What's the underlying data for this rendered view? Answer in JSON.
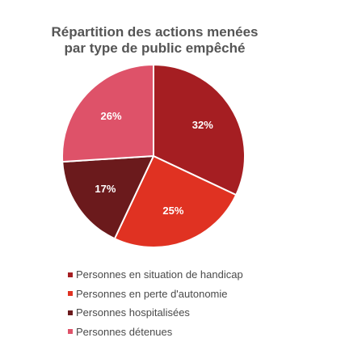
{
  "chart_data": {
    "type": "pie",
    "title": "Répartition des actions menées par type de public empêché",
    "title_lines": [
      "Répartition des actions menées",
      "par type de public empêché"
    ],
    "categories": [
      "Personnes en situation de handicap",
      "Personnes en perte d'autonomie",
      "Personnes hospitalisées",
      "Personnes détenues"
    ],
    "values": [
      32,
      25,
      17,
      26
    ],
    "data_labels": [
      "32%",
      "25%",
      "17%",
      "26%"
    ],
    "colors": [
      "#a51e22",
      "#e03222",
      "#6b1a1c",
      "#de5269"
    ],
    "start_angle_deg": 0,
    "direction": "clockwise",
    "legend_position": "bottom",
    "legend_order": [
      0,
      1,
      2,
      3
    ]
  }
}
